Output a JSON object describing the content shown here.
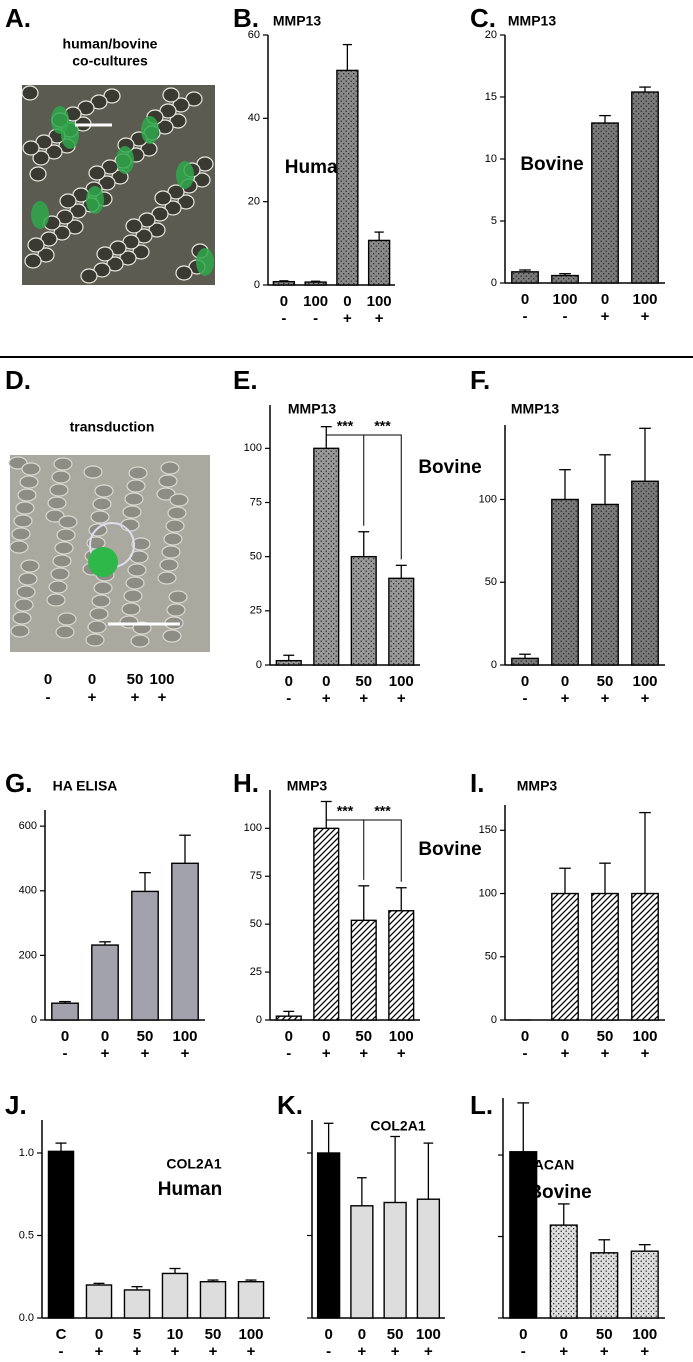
{
  "chart_data": [
    {
      "type": "image",
      "panel": "A.",
      "title": [
        "human/bovine",
        "co-cultures"
      ]
    },
    {
      "type": "bar",
      "panel": "B.",
      "title": "MMP13",
      "annotation": "Human",
      "categories": [
        "0",
        "100",
        "0",
        "100"
      ],
      "treatments": [
        "-",
        "-",
        "+",
        "+"
      ],
      "values": [
        0.8,
        0.7,
        51.5,
        10.7
      ],
      "errors": [
        0.2,
        0.2,
        6.2,
        2.0
      ],
      "colors": [
        "#8a8a8a",
        "#8a8a8a",
        "#8a8a8a",
        "#8a8a8a"
      ],
      "pattern": "dots",
      "ylim": [
        0,
        60
      ],
      "yticks": [
        0,
        20,
        40,
        60
      ]
    },
    {
      "type": "bar",
      "panel": "C.",
      "title": "MMP13",
      "annotation": "Bovine",
      "categories": [
        "0",
        "100",
        "0",
        "100"
      ],
      "treatments": [
        "-",
        "-",
        "+",
        "+"
      ],
      "values": [
        0.9,
        0.6,
        12.9,
        15.4
      ],
      "errors": [
        0.15,
        0.15,
        0.6,
        0.4
      ],
      "colors": [
        "#7a7a7a",
        "#7a7a7a",
        "#7a7a7a",
        "#7a7a7a"
      ],
      "pattern": "dots",
      "ylim": [
        0,
        20
      ],
      "yticks": [
        0,
        5,
        10,
        15,
        20
      ]
    },
    {
      "type": "image",
      "panel": "D.",
      "title": [
        "transduction"
      ],
      "categories": [
        "0",
        "0",
        "50",
        "100"
      ],
      "treatments": [
        "-",
        "+",
        "+",
        "+"
      ]
    },
    {
      "type": "bar",
      "panel": "E.",
      "title": "MMP13",
      "annotation": "Bovine",
      "categories": [
        "0",
        "0",
        "50",
        "100"
      ],
      "treatments": [
        "-",
        "+",
        "+",
        "+"
      ],
      "values": [
        2,
        100,
        50,
        40
      ],
      "errors": [
        2.5,
        10,
        11.5,
        6
      ],
      "colors": [
        "#999999",
        "#999999",
        "#999999",
        "#999999"
      ],
      "pattern": "dots",
      "significance": [
        "***",
        "***"
      ],
      "ylim": [
        0,
        120
      ],
      "yticks": [
        0,
        25,
        50,
        75,
        100
      ]
    },
    {
      "type": "bar",
      "panel": "F.",
      "title": "MMP13",
      "categories": [
        "0",
        "0",
        "50",
        "100"
      ],
      "treatments": [
        "-",
        "+",
        "+",
        "+"
      ],
      "values": [
        4,
        100,
        97,
        111
      ],
      "errors": [
        2.5,
        18,
        30,
        32
      ],
      "colors": [
        "#7a7a7a",
        "#7a7a7a",
        "#7a7a7a",
        "#7a7a7a"
      ],
      "pattern": "dots",
      "ylim": [
        0,
        145
      ],
      "yticks": [
        0,
        50,
        100
      ]
    },
    {
      "type": "bar",
      "panel": "G.",
      "title": "HA ELISA",
      "categories": [
        "0",
        "0",
        "50",
        "100"
      ],
      "treatments": [
        "-",
        "+",
        "+",
        "+"
      ],
      "values": [
        52,
        232,
        398,
        485
      ],
      "errors": [
        5,
        10,
        58,
        87
      ],
      "colors": [
        "#a2a2ac",
        "#a2a2ac",
        "#a2a2ac",
        "#a2a2ac"
      ],
      "pattern": "solid",
      "ylim": [
        0,
        650
      ],
      "yticks": [
        0,
        200,
        400,
        600
      ]
    },
    {
      "type": "bar",
      "panel": "H.",
      "title": "MMP3",
      "annotation": "Bovine",
      "categories": [
        "0",
        "0",
        "50",
        "100"
      ],
      "treatments": [
        "-",
        "+",
        "+",
        "+"
      ],
      "values": [
        2,
        100,
        52,
        57
      ],
      "errors": [
        2.5,
        14,
        18,
        12
      ],
      "colors": [
        "#ffffff",
        "#ffffff",
        "#ffffff",
        "#ffffff"
      ],
      "pattern": "hatch",
      "significance": [
        "***",
        "***"
      ],
      "ylim": [
        0,
        120
      ],
      "yticks": [
        0,
        25,
        50,
        75,
        100
      ]
    },
    {
      "type": "bar",
      "panel": "I.",
      "title": "MMP3",
      "categories": [
        "0",
        "0",
        "50",
        "100"
      ],
      "treatments": [
        "-",
        "+",
        "+",
        "+"
      ],
      "values": [
        0,
        100,
        100,
        100
      ],
      "errors": [
        0,
        20,
        24,
        64
      ],
      "colors": [
        "#ffffff",
        "#ffffff",
        "#ffffff",
        "#ffffff"
      ],
      "pattern": "hatch",
      "ylim": [
        0,
        170
      ],
      "yticks": [
        0,
        50,
        100,
        150
      ]
    },
    {
      "type": "bar",
      "panel": "J.",
      "title": "COL2A1",
      "annotation": "Human",
      "categories": [
        "C",
        "0",
        "5",
        "10",
        "50",
        "100"
      ],
      "treatments": [
        "-",
        "+",
        "+",
        "+",
        "+",
        "+"
      ],
      "values": [
        1.01,
        0.2,
        0.17,
        0.27,
        0.22,
        0.22
      ],
      "errors": [
        0.05,
        0.01,
        0.02,
        0.03,
        0.01,
        0.01
      ],
      "colors": [
        "#000000",
        "#dddddd",
        "#dddddd",
        "#dddddd",
        "#dddddd",
        "#dddddd"
      ],
      "pattern": "solid",
      "ylim": [
        0,
        1.2
      ],
      "yticks": [
        {
          "value": 0,
          "label": "0.0"
        },
        0.5,
        {
          "value": 1,
          "label": "1.0"
        }
      ]
    },
    {
      "type": "bar",
      "panel": "K.",
      "title": "COL2A1",
      "categories": [
        "0",
        "0",
        "50",
        "100"
      ],
      "treatments": [
        "-",
        "+",
        "+",
        "+"
      ],
      "values": [
        1.0,
        0.68,
        0.7,
        0.72
      ],
      "errors": [
        0.18,
        0.17,
        0.4,
        0.34
      ],
      "colors": [
        "#000000",
        "#dddddd",
        "#dddddd",
        "#dddddd"
      ],
      "pattern": "solid",
      "ylim": [
        0,
        1.2
      ],
      "yticks": [
        0,
        0.5,
        1
      ],
      "tick_labels": false
    },
    {
      "type": "bar",
      "panel": "L.",
      "title": "ACAN",
      "annotation": "Bovine",
      "categories": [
        "0",
        "0",
        "50",
        "100"
      ],
      "treatments": [
        "-",
        "+",
        "+",
        "+"
      ],
      "values": [
        1.02,
        0.57,
        0.4,
        0.41
      ],
      "errors": [
        0.3,
        0.13,
        0.08,
        0.04
      ],
      "colors": [
        "#000000",
        "#dddddd",
        "#dddddd",
        "#dddddd"
      ],
      "patterns": [
        "solid",
        "dots",
        "dots",
        "dots"
      ],
      "ylim": [
        0,
        1.35
      ],
      "yticks": [
        0,
        0.5,
        1
      ],
      "tick_labels": false
    }
  ]
}
